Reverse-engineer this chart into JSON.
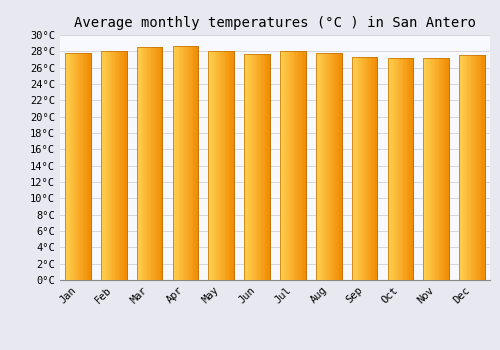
{
  "title": "Average monthly temperatures (°C ) in San Antero",
  "months": [
    "Jan",
    "Feb",
    "Mar",
    "Apr",
    "May",
    "Jun",
    "Jul",
    "Aug",
    "Sep",
    "Oct",
    "Nov",
    "Dec"
  ],
  "values": [
    27.8,
    28.0,
    28.5,
    28.6,
    28.0,
    27.7,
    28.0,
    27.8,
    27.3,
    27.2,
    27.2,
    27.5
  ],
  "ylim": [
    0,
    30
  ],
  "ytick_step": 2,
  "bar_color_left": "#FFD050",
  "bar_color_right": "#F08800",
  "bar_edge_color": "#C07000",
  "background_color": "#e8e8f0",
  "plot_bg_color": "#f8f8ff",
  "grid_color": "#d0d0d8",
  "title_fontsize": 10,
  "tick_fontsize": 7.5,
  "title_font_family": "monospace",
  "tick_font_family": "monospace"
}
